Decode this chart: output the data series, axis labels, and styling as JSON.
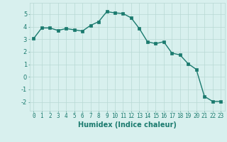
{
  "x": [
    0,
    1,
    2,
    3,
    4,
    5,
    6,
    7,
    8,
    9,
    10,
    11,
    12,
    13,
    14,
    15,
    16,
    17,
    18,
    19,
    20,
    21,
    22,
    23
  ],
  "y": [
    3.05,
    3.9,
    3.9,
    3.7,
    3.85,
    3.75,
    3.65,
    4.1,
    4.4,
    5.2,
    5.1,
    5.05,
    4.7,
    3.85,
    2.8,
    2.65,
    2.8,
    1.9,
    1.75,
    1.05,
    0.6,
    -1.55,
    -1.95,
    -1.95
  ],
  "xlim": [
    -0.5,
    23.5
  ],
  "ylim": [
    -2.7,
    5.9
  ],
  "yticks": [
    -2,
    -1,
    0,
    1,
    2,
    3,
    4,
    5
  ],
  "xticks": [
    0,
    1,
    2,
    3,
    4,
    5,
    6,
    7,
    8,
    9,
    10,
    11,
    12,
    13,
    14,
    15,
    16,
    17,
    18,
    19,
    20,
    21,
    22,
    23
  ],
  "xlabel": "Humidex (Indice chaleur)",
  "line_color": "#1a7a6e",
  "marker": "s",
  "marker_size": 2.2,
  "bg_color": "#d8f0ee",
  "grid_color": "#b8d8d4",
  "label_color": "#1a7a6e",
  "tick_color": "#1a7a6e",
  "tick_fontsize": 5.5,
  "xlabel_fontsize": 7.0
}
